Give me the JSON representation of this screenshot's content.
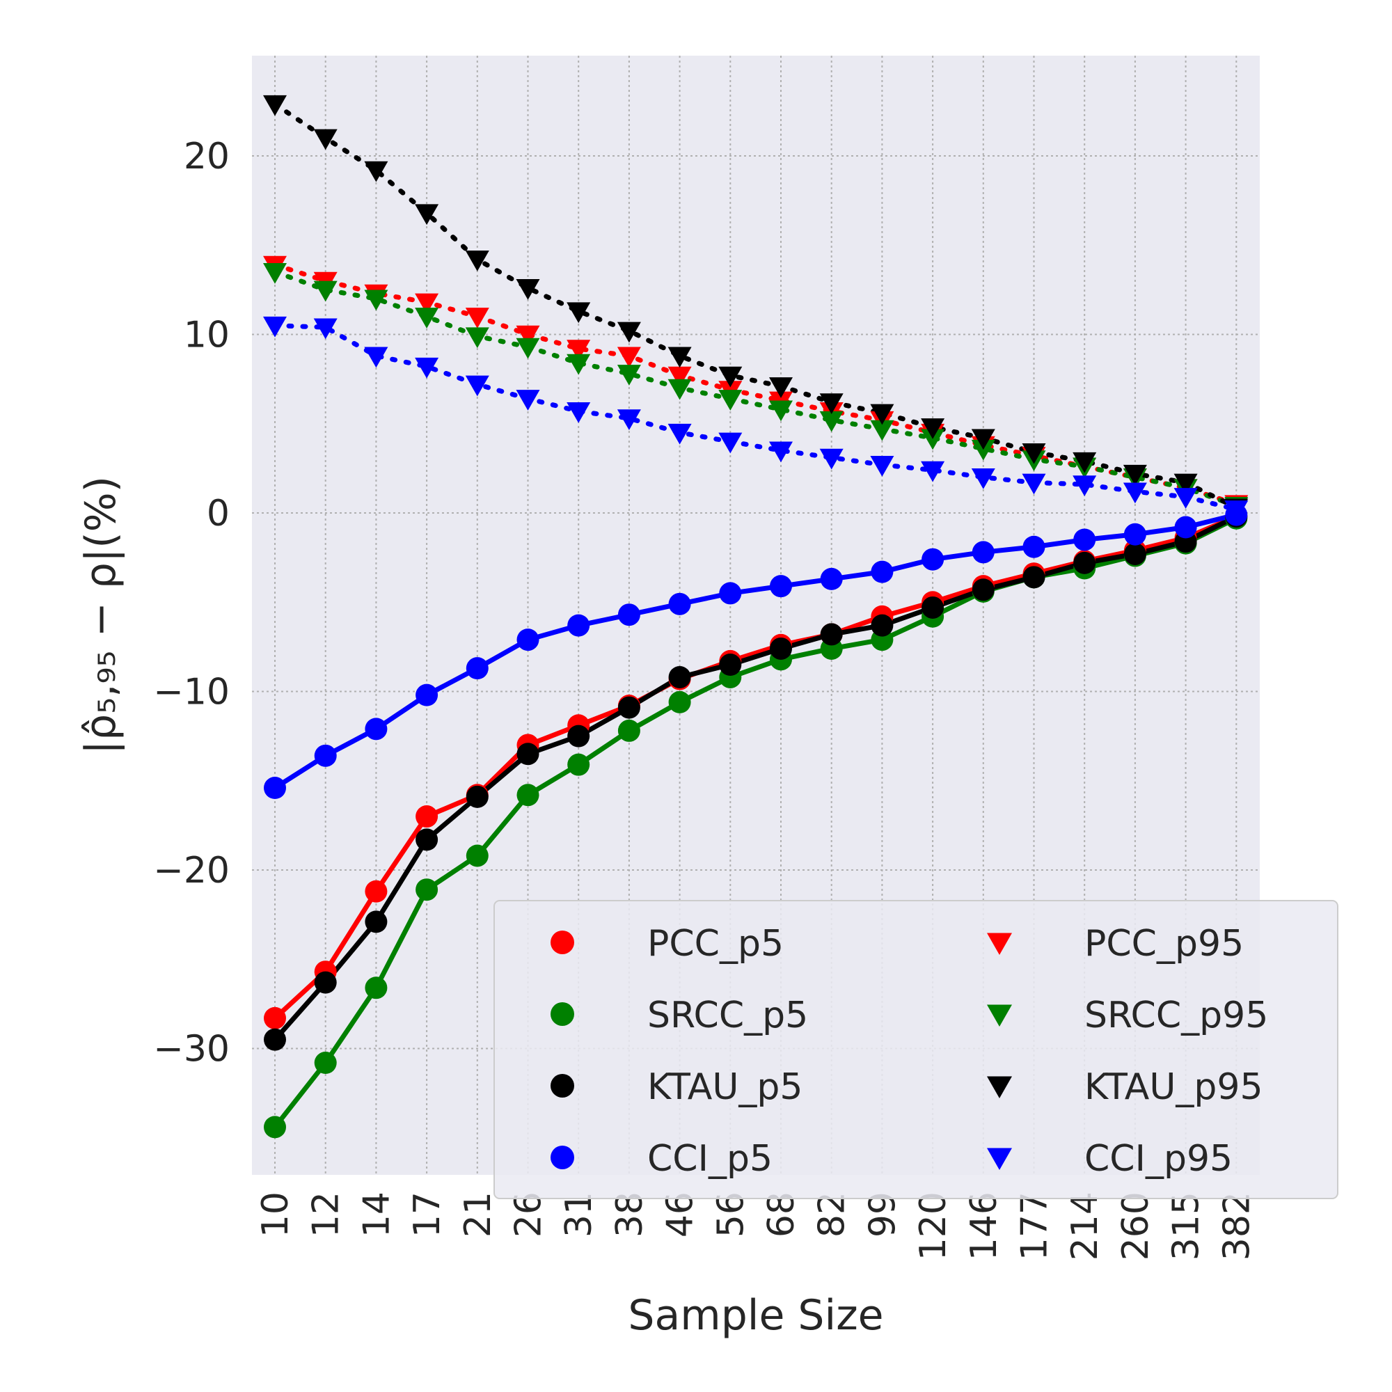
{
  "chart_data": {
    "type": "line",
    "xlabel": "Sample Size",
    "ylabel": "|ρ̂₅,₉₅ − ρ|(%)",
    "x_categories": [
      "10",
      "12",
      "14",
      "17",
      "21",
      "26",
      "31",
      "38",
      "46",
      "56",
      "68",
      "82",
      "99",
      "120",
      "146",
      "177",
      "214",
      "260",
      "315",
      "382"
    ],
    "y_ticks": [
      20,
      10,
      0,
      -10,
      -20,
      -30
    ],
    "y_tick_labels": [
      "20",
      "10",
      "0",
      "−10",
      "−20",
      "−30"
    ],
    "ylim": [
      -37,
      25.5
    ],
    "grid": true,
    "grid_style": "dotted",
    "background": "#eaeaf2",
    "legend_position": "lower-right",
    "legend_columns": 2,
    "series": [
      {
        "name": "PCC_p5",
        "color": "#ff0000",
        "marker": "circle",
        "line": "solid",
        "values": [
          -28.3,
          -25.7,
          -21.2,
          -17.0,
          -15.8,
          -13.0,
          -11.9,
          -10.8,
          -9.3,
          -8.3,
          -7.4,
          -6.8,
          -5.8,
          -5.0,
          -4.1,
          -3.4,
          -2.7,
          -2.1,
          -1.4,
          -0.2
        ]
      },
      {
        "name": "SRCC_p5",
        "color": "#008000",
        "marker": "circle",
        "line": "solid",
        "values": [
          -34.4,
          -30.8,
          -26.6,
          -21.1,
          -19.2,
          -15.8,
          -14.1,
          -12.2,
          -10.6,
          -9.2,
          -8.2,
          -7.6,
          -7.1,
          -5.8,
          -4.4,
          -3.6,
          -3.1,
          -2.4,
          -1.7,
          -0.3
        ]
      },
      {
        "name": "KTAU_p5",
        "color": "#000000",
        "marker": "circle",
        "line": "solid",
        "values": [
          -29.5,
          -26.3,
          -22.9,
          -18.3,
          -15.9,
          -13.5,
          -12.5,
          -10.9,
          -9.2,
          -8.5,
          -7.6,
          -6.8,
          -6.3,
          -5.3,
          -4.3,
          -3.6,
          -2.8,
          -2.3,
          -1.6,
          -0.2
        ]
      },
      {
        "name": "CCI_p5",
        "color": "#0000ff",
        "marker": "circle",
        "line": "solid",
        "values": [
          -15.4,
          -13.6,
          -12.1,
          -10.2,
          -8.7,
          -7.1,
          -6.3,
          -5.7,
          -5.1,
          -4.5,
          -4.1,
          -3.7,
          -3.3,
          -2.6,
          -2.2,
          -1.9,
          -1.5,
          -1.2,
          -0.8,
          -0.1
        ]
      },
      {
        "name": "PCC_p95",
        "color": "#ff0000",
        "marker": "triangle-down",
        "line": "dotted",
        "values": [
          13.9,
          13.0,
          12.3,
          11.8,
          11.0,
          10.0,
          9.2,
          8.8,
          7.7,
          6.9,
          6.3,
          5.7,
          5.2,
          4.5,
          3.8,
          3.2,
          2.6,
          2.0,
          1.4,
          0.5
        ]
      },
      {
        "name": "SRCC_p95",
        "color": "#008000",
        "marker": "triangle-down",
        "line": "dotted",
        "values": [
          13.5,
          12.5,
          12.0,
          11.0,
          9.9,
          9.3,
          8.4,
          7.8,
          7.0,
          6.4,
          5.8,
          5.2,
          4.7,
          4.2,
          3.6,
          3.0,
          2.6,
          2.0,
          1.4,
          0.4
        ]
      },
      {
        "name": "KTAU_p95",
        "color": "#000000",
        "marker": "triangle-down",
        "line": "dotted",
        "values": [
          22.9,
          21.0,
          19.2,
          16.8,
          14.2,
          12.6,
          11.3,
          10.2,
          8.8,
          7.7,
          7.1,
          6.2,
          5.6,
          4.8,
          4.2,
          3.4,
          2.9,
          2.2,
          1.7,
          0.3
        ]
      },
      {
        "name": "CCI_p95",
        "color": "#0000ff",
        "marker": "triangle-down",
        "line": "dotted",
        "values": [
          10.5,
          10.4,
          8.8,
          8.2,
          7.2,
          6.4,
          5.7,
          5.3,
          4.5,
          4.0,
          3.5,
          3.1,
          2.7,
          2.4,
          2.0,
          1.7,
          1.6,
          1.2,
          0.9,
          0.2
        ]
      }
    ],
    "legend": [
      {
        "label": "PCC_p5",
        "color": "#ff0000",
        "marker": "circle"
      },
      {
        "label": "SRCC_p5",
        "color": "#008000",
        "marker": "circle"
      },
      {
        "label": "KTAU_p5",
        "color": "#000000",
        "marker": "circle"
      },
      {
        "label": "CCI_p5",
        "color": "#0000ff",
        "marker": "circle"
      },
      {
        "label": "PCC_p95",
        "color": "#ff0000",
        "marker": "triangle-down"
      },
      {
        "label": "SRCC_p95",
        "color": "#008000",
        "marker": "triangle-down"
      },
      {
        "label": "KTAU_p95",
        "color": "#000000",
        "marker": "triangle-down"
      },
      {
        "label": "CCI_p95",
        "color": "#0000ff",
        "marker": "triangle-down"
      }
    ]
  }
}
